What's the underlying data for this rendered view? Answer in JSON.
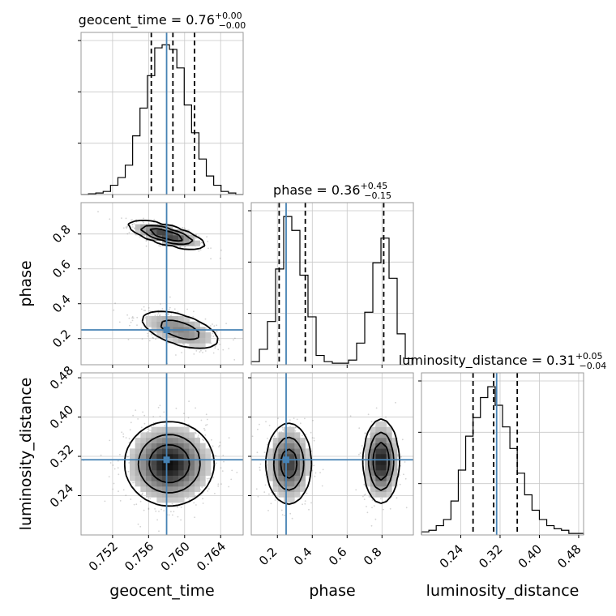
{
  "chart_data": {
    "type": "corner",
    "parameters": [
      {
        "name": "geocent_time",
        "axis_label": "geocent_time",
        "title_label": "geocent_time = 0.76",
        "title_sup": "+0.00",
        "title_sub": "−0.00",
        "range": [
          0.7485,
          0.7665
        ],
        "ticks": [
          0.752,
          0.756,
          0.76,
          0.764
        ],
        "tick_labels": [
          "0.752",
          "0.756",
          "0.760",
          "0.764"
        ],
        "truth": 0.758,
        "quantiles": [
          0.7563,
          0.7587,
          0.7611
        ],
        "hist_values": [
          0,
          0.005,
          0.01,
          0.02,
          0.06,
          0.11,
          0.19,
          0.38,
          0.56,
          0.77,
          0.95,
          0.97,
          0.94,
          0.82,
          0.58,
          0.4,
          0.23,
          0.12,
          0.06,
          0.02,
          0.01,
          0
        ]
      },
      {
        "name": "phase",
        "axis_label": "phase",
        "title_label": "phase = 0.36",
        "title_sup": "+0.45",
        "title_sub": "−0.15",
        "range": [
          0.05,
          0.98
        ],
        "ticks": [
          0.2,
          0.4,
          0.6,
          0.8
        ],
        "tick_labels": [
          "0.2",
          "0.4",
          "0.6",
          "0.8"
        ],
        "truth": 0.25,
        "quantiles": [
          0.21,
          0.36,
          0.81
        ],
        "hist_values": [
          0.02,
          0.1,
          0.28,
          0.62,
          0.96,
          0.87,
          0.58,
          0.31,
          0.06,
          0.02,
          0.01,
          0.01,
          0.03,
          0.14,
          0.34,
          0.66,
          0.82,
          0.56,
          0.2,
          0.04
        ]
      },
      {
        "name": "luminosity_distance",
        "axis_label": "luminosity_distance",
        "title_label": "luminosity_distance = 0.31",
        "title_sup": "+0.05",
        "title_sub": "−0.04",
        "range": [
          0.16,
          0.49
        ],
        "ticks": [
          0.24,
          0.32,
          0.4,
          0.48
        ],
        "tick_labels": [
          "0.24",
          "0.32",
          "0.40",
          "0.48"
        ],
        "truth": 0.313,
        "quantiles": [
          0.265,
          0.307,
          0.355
        ],
        "hist_values": [
          0.02,
          0.03,
          0.06,
          0.1,
          0.22,
          0.42,
          0.64,
          0.76,
          0.89,
          0.96,
          0.84,
          0.7,
          0.56,
          0.4,
          0.26,
          0.16,
          0.1,
          0.06,
          0.04,
          0.03,
          0.01,
          0.01
        ]
      }
    ],
    "hist_ylim": [
      0,
      1.05
    ],
    "contour_levels": [
      0.39,
      0.86,
      0.99
    ],
    "pairs": [
      {
        "x": 0,
        "y": 1,
        "modes": [
          {
            "cx": 0.758,
            "cy": 0.795,
            "sx": 0.0019,
            "sy": 0.035,
            "rho": -0.72,
            "weight": 0.48
          },
          {
            "cx": 0.7595,
            "cy": 0.25,
            "sx": 0.0022,
            "sy": 0.055,
            "rho": -0.55,
            "weight": 0.52
          }
        ]
      },
      {
        "x": 0,
        "y": 2,
        "modes": [
          {
            "cx": 0.7583,
            "cy": 0.305,
            "sx": 0.0022,
            "sy": 0.038,
            "rho": 0.0,
            "weight": 1.0
          }
        ]
      },
      {
        "x": 1,
        "y": 2,
        "modes": [
          {
            "cx": 0.265,
            "cy": 0.305,
            "sx": 0.06,
            "sy": 0.038,
            "rho": 0.0,
            "weight": 0.52
          },
          {
            "cx": 0.795,
            "cy": 0.31,
            "sx": 0.045,
            "sy": 0.038,
            "rho": 0.0,
            "weight": 0.48
          }
        ]
      }
    ],
    "colors": {
      "truth": "#4682b4",
      "contour": "#000000",
      "hist": "#000000",
      "grid": "#c8c8c8",
      "frame": "#999999",
      "points": "#808080"
    },
    "grid": true
  }
}
